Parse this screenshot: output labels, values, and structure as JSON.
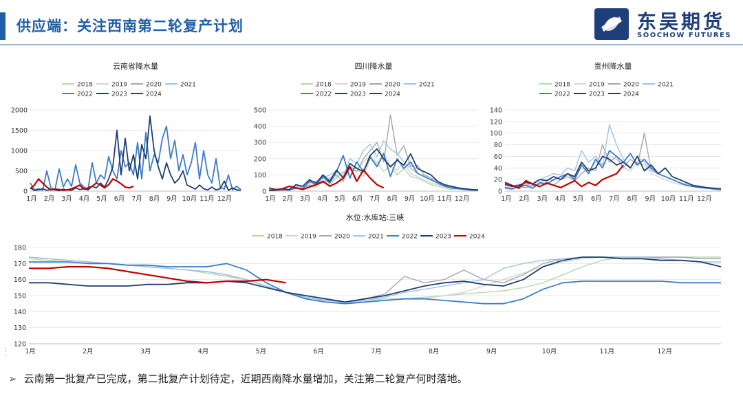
{
  "header": {
    "title": "供应端：关注西南第二轮复产计划",
    "logo_cn": "东吴期货",
    "logo_en": "SOOCHOW FUTURES"
  },
  "colors": {
    "2018": "#b8d8a8",
    "2019": "#d4d4d4",
    "2020": "#a6a6a6",
    "2021": "#9dc3e6",
    "2022": "#3d7cc9",
    "2023": "#1f3f6e",
    "2024": "#c00000"
  },
  "note": "云南第一批复产已完成，第二批复产计划待定，近期西南降水量增加，关注第二轮复产何时落地。",
  "chart_data": [
    {
      "id": "yunnan",
      "type": "line",
      "title": "云南省降水量",
      "ylim": [
        0,
        2000
      ],
      "yticks": [
        0,
        500,
        1000,
        1500,
        2000
      ],
      "xticks": [
        "1月",
        "2月",
        "3月",
        "4月",
        "5月",
        "6月",
        "7月",
        "8月",
        "9月",
        "10月",
        "11月",
        "12月"
      ],
      "legend": [
        "2018",
        "2019",
        "2020",
        "2021",
        "2022",
        "2023",
        "2024"
      ],
      "series": [
        {
          "name": "2022",
          "values": [
            200,
            30,
            60,
            20,
            500,
            80,
            40,
            550,
            100,
            300,
            120,
            650,
            200,
            100,
            50,
            700,
            200,
            400,
            300,
            850,
            500,
            300,
            1000,
            600,
            700,
            400,
            1200,
            300,
            1450,
            500,
            900,
            700,
            1300,
            1600,
            800,
            1250,
            500,
            900,
            400,
            700,
            1200,
            300,
            1000,
            400,
            200,
            800,
            100,
            50,
            400,
            30,
            120,
            40
          ]
        },
        {
          "name": "2023",
          "values": [
            80,
            20,
            30,
            60,
            20,
            40,
            30,
            10,
            50,
            30,
            20,
            80,
            40,
            60,
            30,
            120,
            80,
            200,
            100,
            300,
            600,
            1500,
            400,
            1300,
            500,
            900,
            300,
            1150,
            800,
            1850,
            1000,
            600,
            300,
            700,
            400,
            200,
            300,
            500,
            150,
            100,
            50,
            150,
            60,
            30,
            100,
            30,
            60,
            250,
            20,
            80,
            30,
            20
          ]
        },
        {
          "name": "2024",
          "values": [
            60,
            150,
            300,
            200,
            100,
            30,
            50,
            40,
            20,
            30,
            60,
            100,
            150,
            50,
            80,
            120,
            200,
            150,
            80,
            160,
            300,
            250,
            180,
            100,
            80,
            120
          ]
        }
      ]
    },
    {
      "id": "sichuan",
      "type": "line",
      "title": "四川降水量",
      "ylim": [
        0,
        500
      ],
      "yticks": [
        0,
        100,
        200,
        300,
        400,
        500
      ],
      "xticks": [
        "1月",
        "2月",
        "3月",
        "4月",
        "5月",
        "6月",
        "7月",
        "8月",
        "9月",
        "10月",
        "11月",
        "12月"
      ],
      "legend": [
        "2018",
        "2019",
        "2020",
        "2021",
        "2022",
        "2023",
        "2024"
      ],
      "series": [
        {
          "name": "2018",
          "values": [
            5,
            10,
            8,
            15,
            20,
            10,
            30,
            25,
            60,
            40,
            80,
            120,
            100,
            150,
            90,
            200,
            180,
            120,
            160,
            100,
            140,
            90,
            80,
            60,
            40,
            30,
            20,
            10,
            15,
            8,
            10,
            5
          ]
        },
        {
          "name": "2019",
          "values": [
            8,
            5,
            12,
            10,
            25,
            15,
            40,
            30,
            70,
            50,
            90,
            110,
            140,
            120,
            180,
            220,
            160,
            240,
            150,
            130,
            170,
            110,
            90,
            70,
            50,
            40,
            30,
            20,
            15,
            10,
            8,
            5
          ]
        },
        {
          "name": "2020",
          "values": [
            3,
            6,
            5,
            10,
            15,
            20,
            35,
            40,
            50,
            80,
            100,
            60,
            150,
            120,
            200,
            250,
            300,
            180,
            470,
            220,
            280,
            150,
            160,
            100,
            80,
            60,
            40,
            25,
            20,
            12,
            8,
            5
          ]
        },
        {
          "name": "2021",
          "values": [
            10,
            8,
            15,
            12,
            30,
            25,
            50,
            60,
            80,
            100,
            120,
            90,
            200,
            170,
            250,
            290,
            210,
            310,
            260,
            230,
            180,
            140,
            110,
            90,
            70,
            50,
            35,
            25,
            20,
            15,
            10,
            8
          ]
        },
        {
          "name": "2022",
          "values": [
            5,
            4,
            8,
            6,
            20,
            15,
            60,
            40,
            90,
            50,
            120,
            220,
            80,
            180,
            120,
            210,
            150,
            230,
            90,
            200,
            140,
            180,
            110,
            90,
            70,
            50,
            30,
            20,
            15,
            10,
            6,
            5
          ]
        },
        {
          "name": "2023",
          "values": [
            20,
            10,
            15,
            8,
            40,
            30,
            70,
            50,
            100,
            60,
            130,
            80,
            170,
            140,
            120,
            220,
            260,
            200,
            150,
            190,
            160,
            230,
            140,
            120,
            100,
            60,
            40,
            30,
            20,
            15,
            10,
            8
          ]
        },
        {
          "name": "2024",
          "values": [
            5,
            8,
            15,
            30,
            20,
            10,
            25,
            40,
            60,
            30,
            50,
            80,
            150,
            60,
            130,
            80,
            40,
            20
          ]
        }
      ]
    },
    {
      "id": "guizhou",
      "type": "line",
      "title": "贵州降水量",
      "ylim": [
        0,
        140
      ],
      "yticks": [
        0,
        20,
        40,
        60,
        80,
        100,
        120,
        140
      ],
      "xticks": [
        "1月",
        "2月",
        "3月",
        "4月",
        "5月",
        "6月",
        "7月",
        "8月",
        "9月",
        "10月",
        "11月",
        "12月"
      ],
      "legend": [
        "2018",
        "2019",
        "2020",
        "2021",
        "2022",
        "2023",
        "2024"
      ],
      "series": [
        {
          "name": "2019",
          "values": [
            8,
            5,
            10,
            12,
            8,
            15,
            20,
            18,
            25,
            30,
            22,
            40,
            35,
            50,
            45,
            60,
            55,
            40,
            35,
            50,
            45,
            30,
            25,
            20,
            15,
            12,
            10,
            8,
            6,
            5,
            4,
            3
          ]
        },
        {
          "name": "2020",
          "values": [
            5,
            3,
            8,
            6,
            10,
            12,
            15,
            10,
            20,
            25,
            18,
            30,
            40,
            35,
            80,
            50,
            60,
            40,
            55,
            45,
            100,
            35,
            30,
            25,
            20,
            15,
            10,
            8,
            6,
            5,
            3,
            2
          ]
        },
        {
          "name": "2021",
          "values": [
            10,
            8,
            12,
            10,
            15,
            20,
            25,
            30,
            28,
            40,
            35,
            70,
            50,
            60,
            45,
            115,
            80,
            55,
            40,
            60,
            50,
            35,
            30,
            25,
            20,
            15,
            12,
            10,
            8,
            6,
            5,
            4
          ]
        },
        {
          "name": "2022",
          "values": [
            6,
            4,
            8,
            10,
            5,
            15,
            12,
            20,
            25,
            30,
            20,
            45,
            30,
            55,
            40,
            70,
            60,
            50,
            65,
            45,
            55,
            40,
            30,
            25,
            20,
            15,
            10,
            8,
            6,
            5,
            4,
            3
          ]
        },
        {
          "name": "2023",
          "values": [
            12,
            8,
            10,
            15,
            12,
            20,
            18,
            25,
            20,
            30,
            25,
            50,
            35,
            40,
            60,
            55,
            45,
            50,
            40,
            60,
            35,
            45,
            30,
            40,
            25,
            20,
            15,
            10,
            8,
            6,
            5,
            4
          ]
        },
        {
          "name": "2024",
          "values": [
            15,
            10,
            5,
            18,
            12,
            8,
            14,
            10,
            6,
            12,
            18,
            8,
            15,
            10,
            20,
            25,
            30,
            45
          ]
        }
      ]
    },
    {
      "id": "three-gorges",
      "type": "line",
      "title": "水位:水库站:三峡",
      "ylim": [
        120,
        180
      ],
      "yticks": [
        120,
        130,
        140,
        150,
        160,
        170,
        180
      ],
      "xticks": [
        "1月",
        "2月",
        "3月",
        "4月",
        "5月",
        "6月",
        "7月",
        "8月",
        "9月",
        "10月",
        "11月",
        "12月"
      ],
      "legend": [
        "2018",
        "2019",
        "2020",
        "2021",
        "2022",
        "2023",
        "2024"
      ],
      "series": [
        {
          "name": "2018",
          "values": [
            173,
            172,
            172,
            171,
            170,
            169,
            168,
            167,
            166,
            164,
            162,
            160,
            156,
            152,
            149,
            147,
            146,
            147,
            148,
            148,
            149,
            150,
            151,
            152,
            153,
            155,
            158,
            163,
            168,
            172,
            174,
            174,
            174,
            174,
            174,
            174
          ]
        },
        {
          "name": "2019",
          "values": [
            174,
            173,
            172,
            171,
            170,
            169,
            168,
            167,
            166,
            165,
            163,
            160,
            156,
            152,
            149,
            147,
            146,
            146,
            147,
            148,
            148,
            150,
            152,
            156,
            160,
            164,
            168,
            171,
            173,
            174,
            174,
            174,
            174,
            174,
            173,
            173
          ]
        },
        {
          "name": "2020",
          "values": [
            174,
            173,
            172,
            171,
            170,
            169,
            168,
            167,
            166,
            165,
            163,
            160,
            156,
            152,
            149,
            147,
            146,
            148,
            151,
            162,
            158,
            160,
            166,
            160,
            158,
            163,
            170,
            173,
            174,
            174,
            174,
            174,
            174,
            174,
            173,
            173
          ]
        },
        {
          "name": "2021",
          "values": [
            174,
            173,
            172,
            171,
            170,
            169,
            168,
            167,
            166,
            165,
            163,
            160,
            156,
            152,
            149,
            147,
            146,
            147,
            149,
            152,
            154,
            156,
            158,
            160,
            167,
            170,
            172,
            173,
            174,
            174,
            174,
            174,
            173,
            172,
            171,
            171
          ]
        },
        {
          "name": "2022",
          "values": [
            171,
            171,
            171,
            170,
            170,
            169,
            169,
            168,
            168,
            168,
            170,
            166,
            158,
            152,
            148,
            146,
            145,
            146,
            147,
            148,
            148,
            147,
            146,
            145,
            145,
            148,
            154,
            158,
            159,
            159,
            159,
            159,
            159,
            158,
            158,
            158
          ]
        },
        {
          "name": "2023",
          "values": [
            158,
            158,
            157,
            156,
            156,
            156,
            157,
            157,
            158,
            158,
            159,
            158,
            155,
            152,
            150,
            148,
            146,
            148,
            150,
            153,
            156,
            158,
            159,
            157,
            156,
            160,
            168,
            172,
            174,
            174,
            173,
            173,
            172,
            172,
            171,
            168
          ]
        },
        {
          "name": "2024",
          "values": [
            167,
            167,
            168,
            168,
            167,
            165,
            163,
            161,
            159,
            158,
            159,
            159,
            160,
            158
          ]
        }
      ]
    }
  ]
}
